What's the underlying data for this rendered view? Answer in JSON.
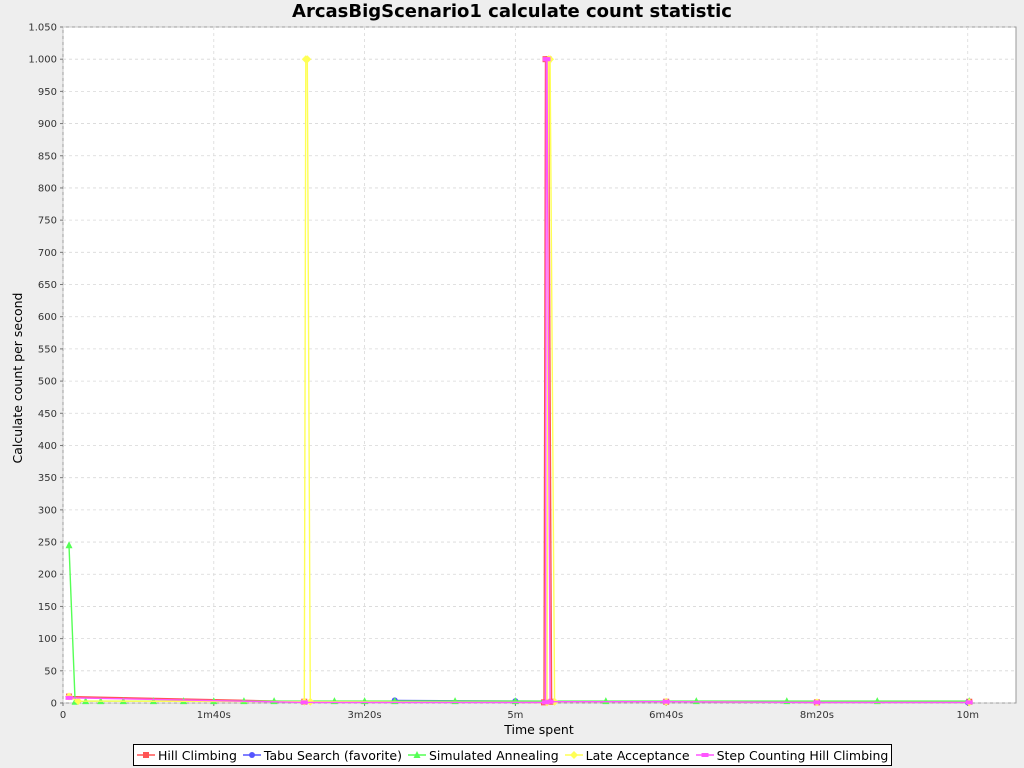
{
  "chart_data": {
    "type": "line",
    "title": "ArcasBigScenario1 calculate count statistic",
    "xlabel": "Time spent",
    "ylabel": "Calculate count per second",
    "xlim": [
      0,
      632
    ],
    "ylim": [
      0,
      1050
    ],
    "x_ticks": [
      {
        "value": 0,
        "label": "0"
      },
      {
        "value": 100,
        "label": "1m40s"
      },
      {
        "value": 200,
        "label": "3m20s"
      },
      {
        "value": 300,
        "label": "5m"
      },
      {
        "value": 400,
        "label": "6m40s"
      },
      {
        "value": 500,
        "label": "8m20s"
      },
      {
        "value": 600,
        "label": "10m"
      }
    ],
    "y_ticks": [
      {
        "value": 0,
        "label": "0"
      },
      {
        "value": 50,
        "label": "50"
      },
      {
        "value": 100,
        "label": "100"
      },
      {
        "value": 150,
        "label": "150"
      },
      {
        "value": 200,
        "label": "200"
      },
      {
        "value": 250,
        "label": "250"
      },
      {
        "value": 300,
        "label": "300"
      },
      {
        "value": 350,
        "label": "350"
      },
      {
        "value": 400,
        "label": "400"
      },
      {
        "value": 450,
        "label": "450"
      },
      {
        "value": 500,
        "label": "500"
      },
      {
        "value": 550,
        "label": "550"
      },
      {
        "value": 600,
        "label": "600"
      },
      {
        "value": 650,
        "label": "650"
      },
      {
        "value": 700,
        "label": "700"
      },
      {
        "value": 750,
        "label": "750"
      },
      {
        "value": 800,
        "label": "800"
      },
      {
        "value": 850,
        "label": "850"
      },
      {
        "value": 900,
        "label": "900"
      },
      {
        "value": 950,
        "label": "950"
      },
      {
        "value": 1000,
        "label": "1.000"
      },
      {
        "value": 1050,
        "label": "1.050"
      }
    ],
    "grid": true,
    "legend_position": "bottom",
    "colors": {
      "background": "#eeeeee",
      "plot_background": "#ffffff",
      "grid": "#d8d8d8",
      "border": "#999999"
    },
    "series": [
      {
        "name": "Hill Climbing",
        "color": "#ff5555",
        "marker": "square",
        "points": [
          [
            4,
            10
          ],
          [
            160,
            2
          ],
          [
            319,
            1
          ],
          [
            320,
            1000
          ],
          [
            322,
            1000
          ],
          [
            324,
            2
          ],
          [
            400,
            2
          ],
          [
            500,
            1
          ],
          [
            601,
            2
          ]
        ]
      },
      {
        "name": "Tabu Search (favorite)",
        "color": "#5555ff",
        "marker": "circle",
        "points": [
          [
            220,
            4
          ],
          [
            300,
            3
          ],
          [
            400,
            2
          ],
          [
            500,
            1
          ],
          [
            600,
            1
          ]
        ]
      },
      {
        "name": "Simulated Annealing",
        "color": "#55ff55",
        "marker": "triangle",
        "points": [
          [
            4,
            245
          ],
          [
            8,
            2
          ],
          [
            15,
            3
          ],
          [
            25,
            3
          ],
          [
            40,
            3
          ],
          [
            60,
            3
          ],
          [
            80,
            3
          ],
          [
            100,
            3
          ],
          [
            120,
            3
          ],
          [
            140,
            3
          ],
          [
            160,
            3
          ],
          [
            180,
            3
          ],
          [
            200,
            3
          ],
          [
            220,
            3
          ],
          [
            260,
            3
          ],
          [
            300,
            3
          ],
          [
            360,
            3
          ],
          [
            420,
            3
          ],
          [
            480,
            3
          ],
          [
            540,
            3
          ],
          [
            601,
            3
          ]
        ]
      },
      {
        "name": "Late Acceptance",
        "color": "#ffff55",
        "marker": "diamond",
        "points": [
          [
            4,
            10
          ],
          [
            10,
            3
          ],
          [
            160,
            2
          ],
          [
            161,
            1000
          ],
          [
            162,
            1000
          ],
          [
            164,
            2
          ],
          [
            321,
            1
          ],
          [
            322,
            1000
          ],
          [
            323,
            1000
          ],
          [
            326,
            2
          ],
          [
            400,
            2
          ],
          [
            500,
            1
          ],
          [
            601,
            1
          ]
        ]
      },
      {
        "name": "Step Counting Hill Climbing",
        "color": "#ff55ff",
        "marker": "rect",
        "points": [
          [
            4,
            8
          ],
          [
            160,
            1
          ],
          [
            320,
            1
          ],
          [
            320.5,
            1000
          ],
          [
            321,
            1000
          ],
          [
            323,
            2
          ],
          [
            400,
            2
          ],
          [
            500,
            1
          ],
          [
            601,
            1
          ]
        ]
      }
    ]
  }
}
